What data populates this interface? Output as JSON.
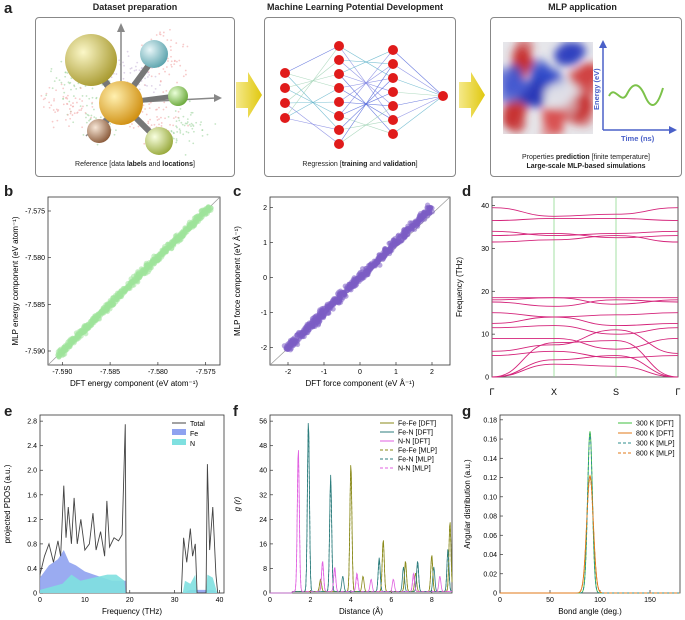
{
  "panel_labels": {
    "a": "a",
    "b": "b",
    "c": "c",
    "d": "d",
    "e": "e",
    "f": "f",
    "g": "g"
  },
  "panel_a": {
    "titles": [
      "Dataset preparation",
      "Machine Learning Potential Development",
      "MLP application"
    ],
    "caption1": {
      "pre": "Reference [data ",
      "b1": "labels",
      "mid": " and ",
      "b2": "locations",
      "post": "]"
    },
    "caption2": {
      "pre": "Regression [",
      "b1": "training",
      "mid": " and ",
      "b2": "validation",
      "post": "]"
    },
    "caption3_line1": {
      "pre": "Properties ",
      "b1": "prediction",
      "post": " [finite temperature]"
    },
    "caption3_line2": "Large-scale MLP-based simulations",
    "energy_axis": "Energy (eV)",
    "time_axis": "Time (ns)",
    "colors": {
      "arrow": "#e6cf1a",
      "neuron": "#e01b1b",
      "energy_line": "#7cc24a",
      "axis_blue": "#4a60c8"
    }
  },
  "chart_data": [
    {
      "id": "b",
      "type": "scatter",
      "xlabel": "DFT energy component (eV atom⁻¹)",
      "ylabel": "MLP energy component (eV atom⁻¹)",
      "xlim": [
        -7.5915,
        -7.5735
      ],
      "ylim": [
        -7.5915,
        -7.5735
      ],
      "xticks": [
        -7.59,
        -7.585,
        -7.58,
        -7.575
      ],
      "yticks": [
        -7.59,
        -7.585,
        -7.58,
        -7.575
      ],
      "xtick_labels": [
        "-7.590",
        "-7.585",
        "-7.580",
        "-7.575"
      ],
      "ytick_labels": [
        "-7.590",
        "-7.585",
        "-7.580",
        "-7.575"
      ],
      "range": [
        -7.5905,
        -7.5745
      ],
      "color": "#9fe39a"
    },
    {
      "id": "c",
      "type": "scatter",
      "xlabel": "DFT force component (eV Å⁻¹)",
      "ylabel": "MLP force component (eV Å⁻¹)",
      "xlim": [
        -2.5,
        2.5
      ],
      "ylim": [
        -2.5,
        2.3
      ],
      "xticks": [
        -2,
        -1,
        0,
        1,
        2
      ],
      "yticks": [
        -2,
        -1,
        0,
        1,
        2
      ],
      "xtick_labels": [
        "-2",
        "-1",
        "0",
        "1",
        "2"
      ],
      "ytick_labels": [
        "-2",
        "-1",
        "0",
        "1",
        "2"
      ],
      "range": [
        -2.05,
        2.0
      ],
      "color": "#7b5cc4"
    },
    {
      "id": "d",
      "type": "line",
      "ylabel": "Frequency (THz)",
      "xlim": [
        0,
        3
      ],
      "ylim": [
        0,
        42
      ],
      "yticks": [
        0,
        10,
        20,
        30,
        40
      ],
      "ytick_labels": [
        "0",
        "10",
        "20",
        "30",
        "40"
      ],
      "kpoints": [
        0,
        1,
        2,
        3
      ],
      "klabels": [
        "Γ",
        "X",
        "S",
        "Γ"
      ],
      "color": "#d4237a",
      "bands": [
        [
          0,
          3,
          2.5,
          0
        ],
        [
          0,
          4,
          5,
          0
        ],
        [
          0,
          8,
          8.5,
          0
        ],
        [
          5,
          6,
          4.5,
          5
        ],
        [
          6,
          7.5,
          11,
          5.5
        ],
        [
          9,
          9,
          6.5,
          9
        ],
        [
          11.5,
          12,
          10,
          11.5
        ],
        [
          12.5,
          14,
          12,
          12.5
        ],
        [
          15,
          14,
          14.5,
          15
        ],
        [
          17.5,
          16.5,
          18,
          17.5
        ],
        [
          18,
          18.5,
          17,
          18
        ],
        [
          18.5,
          18.5,
          18.5,
          18.5
        ],
        [
          31.5,
          32,
          33,
          31.5
        ],
        [
          33,
          33.5,
          32.5,
          33
        ],
        [
          34,
          33,
          33.5,
          34
        ],
        [
          36.5,
          37,
          37,
          36.5
        ],
        [
          39.5,
          37.5,
          38,
          39.5
        ]
      ]
    },
    {
      "id": "e",
      "type": "area",
      "xlabel": "Frequency (THz)",
      "ylabel": "projected PDOS (a.u.)",
      "xlim": [
        0,
        41
      ],
      "ylim": [
        0,
        2.9
      ],
      "xticks": [
        0,
        10,
        20,
        30,
        40
      ],
      "xtick_labels": [
        "0",
        "10",
        "20",
        "30",
        "40"
      ],
      "yticks": [
        0,
        0.4,
        0.8,
        1.2,
        1.6,
        2.0,
        2.4,
        2.8
      ],
      "ytick_labels": [
        "0",
        "0.4",
        "0.8",
        "1.2",
        "1.6",
        "2.0",
        "2.4",
        "2.8"
      ],
      "legend": [
        "Total",
        "Fe",
        "N"
      ],
      "colors": {
        "total": "#444444",
        "fe": "#8fa2f0",
        "n": "#7fe0e0"
      },
      "total": [
        [
          0,
          0.3
        ],
        [
          1,
          0.6
        ],
        [
          2,
          0.8
        ],
        [
          3,
          0.5
        ],
        [
          4,
          0.85
        ],
        [
          4.6,
          0.6
        ],
        [
          5.3,
          1.75
        ],
        [
          5.8,
          0.9
        ],
        [
          6.3,
          1.4
        ],
        [
          7,
          0.8
        ],
        [
          7.6,
          1.55
        ],
        [
          8.3,
          0.8
        ],
        [
          9.1,
          1.2
        ],
        [
          10,
          0.7
        ],
        [
          11,
          0.8
        ],
        [
          11.8,
          1.3
        ],
        [
          12.5,
          0.7
        ],
        [
          13.5,
          1.0
        ],
        [
          14.4,
          0.6
        ],
        [
          14.9,
          1.5
        ],
        [
          15.5,
          0.75
        ],
        [
          16.5,
          0.9
        ],
        [
          17.5,
          0.85
        ],
        [
          18.3,
          0.95
        ],
        [
          19,
          2.75
        ],
        [
          19.2,
          0
        ],
        [
          31.5,
          0
        ],
        [
          32,
          0.9
        ],
        [
          32.7,
          0.5
        ],
        [
          33.5,
          1.05
        ],
        [
          34,
          0.6
        ],
        [
          34.6,
          0.8
        ],
        [
          35,
          0
        ],
        [
          37,
          0
        ],
        [
          37.3,
          2.1
        ],
        [
          37.8,
          0.7
        ],
        [
          38.5,
          1.4
        ],
        [
          39.2,
          0.3
        ],
        [
          39.6,
          0
        ]
      ],
      "fe": [
        [
          0,
          0.25
        ],
        [
          2,
          0.45
        ],
        [
          4,
          0.55
        ],
        [
          5.3,
          0.7
        ],
        [
          6.5,
          0.5
        ],
        [
          8,
          0.45
        ],
        [
          10,
          0.35
        ],
        [
          12,
          0.3
        ],
        [
          14,
          0.25
        ],
        [
          16,
          0.2
        ],
        [
          18,
          0.2
        ],
        [
          19.1,
          0.2
        ],
        [
          19.2,
          0
        ],
        [
          32,
          0
        ],
        [
          33.5,
          0.05
        ],
        [
          38.5,
          0.05
        ],
        [
          39.5,
          0
        ]
      ],
      "n": [
        [
          0,
          0.05
        ],
        [
          5,
          0.15
        ],
        [
          7,
          0.3
        ],
        [
          9,
          0.2
        ],
        [
          12,
          0.25
        ],
        [
          15,
          0.3
        ],
        [
          17,
          0.3
        ],
        [
          18.8,
          0.2
        ],
        [
          19.1,
          0
        ],
        [
          31.8,
          0
        ],
        [
          32.3,
          0.2
        ],
        [
          33.5,
          0.15
        ],
        [
          34.6,
          0.3
        ],
        [
          35,
          0
        ],
        [
          37,
          0
        ],
        [
          37.3,
          0.3
        ],
        [
          38.5,
          0.25
        ],
        [
          39.5,
          0
        ]
      ]
    },
    {
      "id": "f",
      "type": "line",
      "xlabel": "Distance (Å)",
      "ylabel": "g (r)",
      "xlim": [
        0,
        9
      ],
      "ylim": [
        0,
        58
      ],
      "xticks": [
        0,
        2,
        4,
        6,
        8
      ],
      "xtick_labels": [
        "0",
        "2",
        "4",
        "6",
        "8"
      ],
      "yticks": [
        0,
        8,
        16,
        24,
        32,
        40,
        48,
        56
      ],
      "ytick_labels": [
        "0",
        "8",
        "16",
        "24",
        "32",
        "40",
        "48",
        "56"
      ],
      "series": [
        {
          "name": "Fe-Fe [DFT]",
          "color": "#8a8a1a",
          "dash": false,
          "peaks": [
            [
              2.5,
              4
            ],
            [
              4.0,
              42
            ],
            [
              4.6,
              5
            ],
            [
              5.6,
              17
            ],
            [
              6.7,
              10
            ],
            [
              7.2,
              6
            ],
            [
              8.0,
              12
            ],
            [
              8.9,
              23
            ]
          ]
        },
        {
          "name": "Fe-N  [DFT]",
          "color": "#2c7d7d",
          "dash": false,
          "peaks": [
            [
              1.9,
              56
            ],
            [
              3.0,
              38
            ],
            [
              3.6,
              5
            ],
            [
              5.4,
              11
            ],
            [
              6.6,
              8
            ],
            [
              7.3,
              10
            ],
            [
              8.1,
              8
            ],
            [
              8.8,
              14
            ]
          ]
        },
        {
          "name": "N-N   [DFT]",
          "color": "#e060e0",
          "dash": false,
          "peaks": [
            [
              1.4,
              47
            ],
            [
              2.6,
              10
            ],
            [
              3.2,
              8
            ],
            [
              4.3,
              6
            ],
            [
              5.0,
              4
            ],
            [
              6.1,
              4
            ],
            [
              7.1,
              6
            ],
            [
              8.4,
              5
            ]
          ]
        },
        {
          "name": "Fe-Fe [MLP]",
          "color": "#8a8a1a",
          "dash": true,
          "peaks": [
            [
              2.5,
              3.5
            ],
            [
              4.0,
              40
            ],
            [
              5.6,
              16
            ],
            [
              6.7,
              9
            ],
            [
              8.0,
              11
            ],
            [
              8.9,
              22
            ]
          ]
        },
        {
          "name": "Fe-N  [MLP]",
          "color": "#2c7d7d",
          "dash": true,
          "peaks": [
            [
              1.9,
              54
            ],
            [
              3.0,
              36
            ],
            [
              5.4,
              10
            ],
            [
              7.3,
              9
            ],
            [
              8.8,
              13
            ]
          ]
        },
        {
          "name": "N-N   [MLP]",
          "color": "#e060e0",
          "dash": true,
          "peaks": [
            [
              1.4,
              45
            ],
            [
              2.6,
              9
            ],
            [
              3.2,
              7
            ],
            [
              4.3,
              5
            ],
            [
              7.1,
              5
            ]
          ]
        }
      ]
    },
    {
      "id": "g",
      "type": "line",
      "xlabel": "Bond angle (deg.)",
      "ylabel": "Angular distribution (a.u.)",
      "xlim": [
        0,
        180
      ],
      "ylim": [
        0,
        0.185
      ],
      "xticks": [
        0,
        50,
        100,
        150
      ],
      "xtick_labels": [
        "0",
        "50",
        "100",
        "150"
      ],
      "yticks": [
        0,
        0.02,
        0.04,
        0.06,
        0.08,
        0.1,
        0.12,
        0.14,
        0.16,
        0.18
      ],
      "ytick_labels": [
        "0",
        "0.02",
        "0.04",
        "0.06",
        "0.08",
        "0.10",
        "0.12",
        "0.14",
        "0.16",
        "0.18"
      ],
      "series": [
        {
          "name": "300 K [DFT]",
          "color": "#3fbf3f",
          "dash": false,
          "peak": 0.168,
          "sigma": 2.4,
          "center": 90
        },
        {
          "name": "800 K [DFT]",
          "color": "#e07a1a",
          "dash": false,
          "peak": 0.122,
          "sigma": 3.3,
          "center": 90
        },
        {
          "name": "300 K [MLP]",
          "color": "#2c8c8c",
          "dash": true,
          "peak": 0.166,
          "sigma": 2.4,
          "center": 90
        },
        {
          "name": "800 K [MLP]",
          "color": "#e07a1a",
          "dash": true,
          "peak": 0.12,
          "sigma": 3.3,
          "center": 90
        }
      ]
    }
  ]
}
